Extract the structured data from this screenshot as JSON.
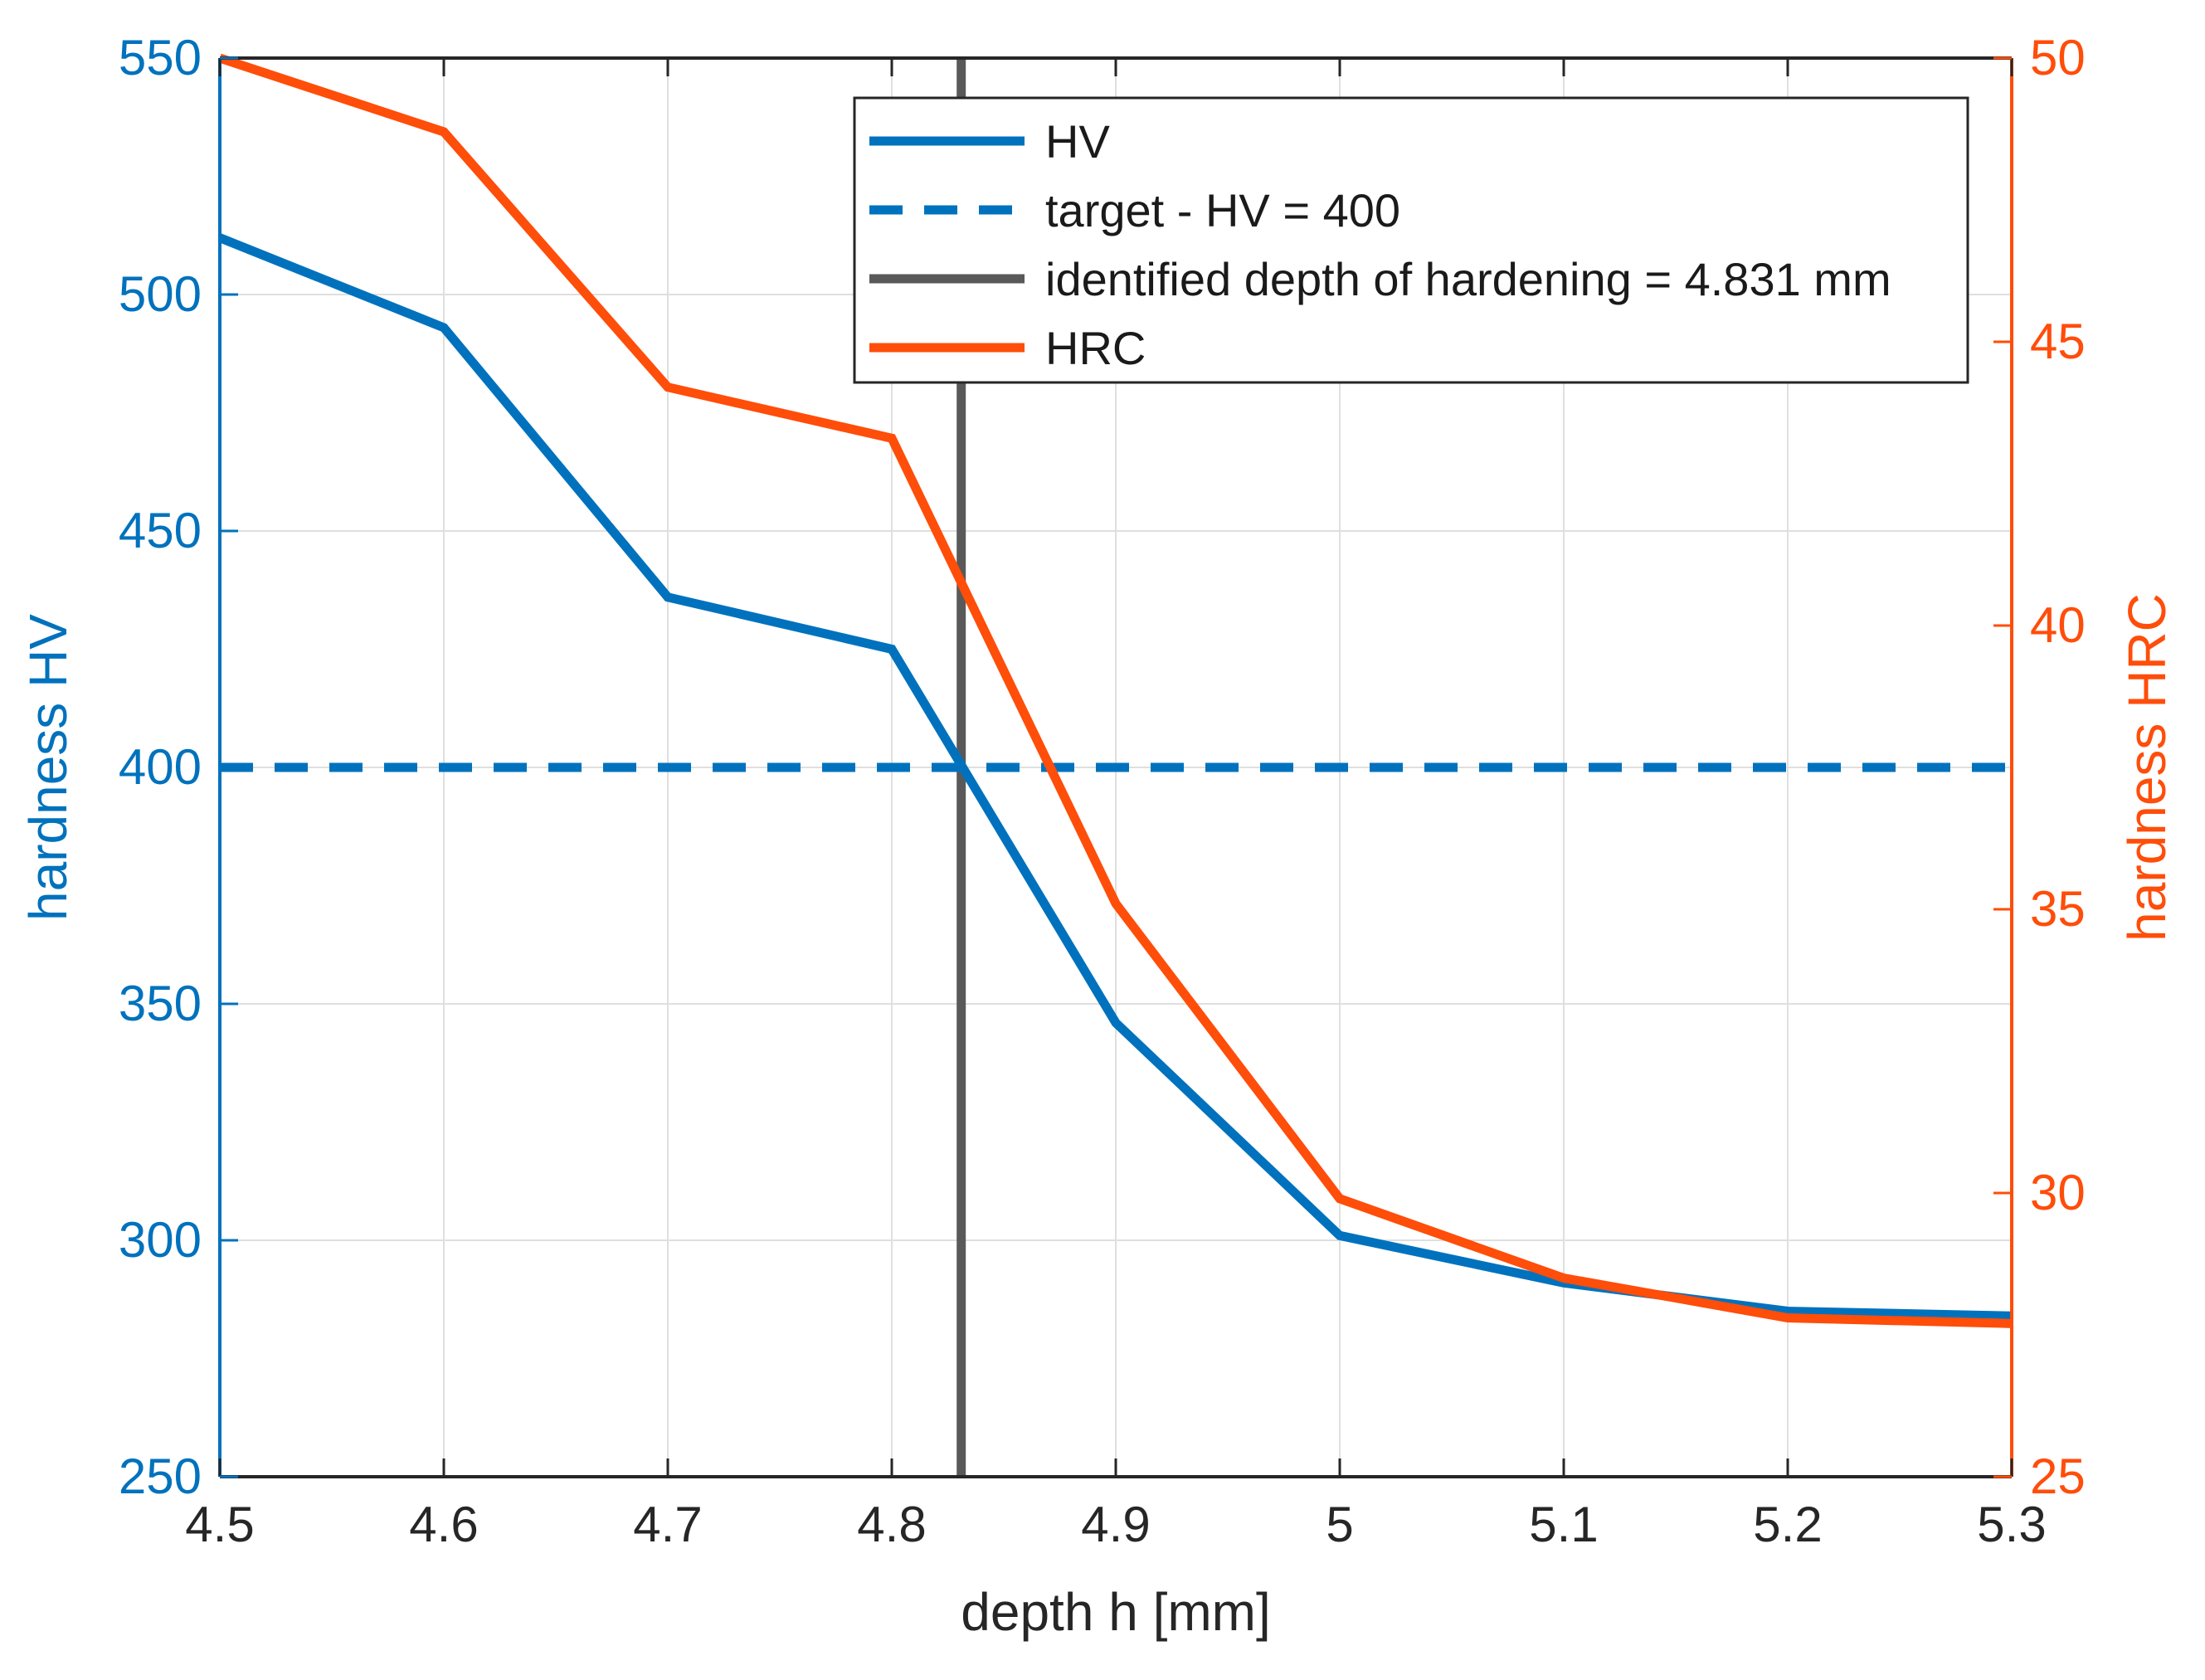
{
  "chart_data": {
    "type": "line",
    "x": [
      4.5,
      4.6,
      4.7,
      4.8,
      4.9,
      5.0,
      5.1,
      5.2,
      5.3
    ],
    "xlabel": "depth h [mm]",
    "xlim": [
      4.5,
      5.3
    ],
    "xticks": [
      "4.5",
      "4.6",
      "4.7",
      "4.8",
      "4.9",
      "5",
      "5.1",
      "5.2",
      "5.3"
    ],
    "ylabel": "hardness HV",
    "ylim": [
      250,
      550
    ],
    "yticks": [
      "250",
      "300",
      "350",
      "400",
      "450",
      "500",
      "550"
    ],
    "y2label": "hardness HRC",
    "y2lim": [
      25,
      50
    ],
    "y2ticks": [
      "25",
      "30",
      "35",
      "40",
      "45",
      "50"
    ],
    "grid": true,
    "legend_position": "top-right",
    "series": [
      {
        "name": "HV",
        "axis": "left",
        "style": "solid",
        "color": "#0072BD",
        "values": [
          512,
          493,
          436,
          425,
          346,
          301,
          291,
          285,
          284
        ]
      },
      {
        "name": "target - HV = 400",
        "axis": "left",
        "style": "dashed",
        "color": "#0072BD",
        "hline": 400
      },
      {
        "name": "identified depth of hardening = 4.831 mm",
        "style": "solid",
        "color": "#595959",
        "vline": 4.831
      },
      {
        "name": "HRC",
        "axis": "right",
        "style": "solid",
        "color": "#FF4D0A",
        "values": [
          50,
          48.7,
          44.2,
          43.3,
          35.1,
          29.9,
          28.5,
          27.8,
          27.7
        ]
      }
    ],
    "colors": {
      "left_axis": "#0072BD",
      "right_axis": "#FF4D0A",
      "x_axis": "#262626"
    }
  }
}
